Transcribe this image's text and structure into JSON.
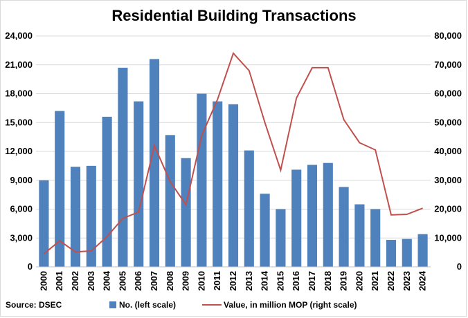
{
  "chart_data": {
    "type": "bar",
    "title": "Residential Building Transactions",
    "categories": [
      "2000",
      "2001",
      "2002",
      "2003",
      "2004",
      "2005",
      "2006",
      "2007",
      "2008",
      "2009",
      "2010",
      "2011",
      "2012",
      "2013",
      "2014",
      "2015",
      "2016",
      "2017",
      "2018",
      "2019",
      "2020",
      "2021",
      "2022",
      "2023",
      "2024"
    ],
    "series": [
      {
        "name": "No. (left scale)",
        "kind": "bar",
        "axis": "left",
        "color": "#4f81bd",
        "values": [
          9000,
          16200,
          10400,
          10500,
          15600,
          20700,
          17200,
          21600,
          13700,
          11300,
          18000,
          17200,
          16900,
          12100,
          7600,
          6000,
          10100,
          10600,
          10800,
          8300,
          6500,
          6000,
          2800,
          2900,
          3400
        ]
      },
      {
        "name": "Value, in million MOP (right scale)",
        "kind": "line",
        "axis": "right",
        "color": "#c0504d",
        "values": [
          4500,
          9000,
          5200,
          5500,
          10500,
          16800,
          19000,
          42000,
          29500,
          21500,
          45500,
          58000,
          74000,
          68000,
          50000,
          33500,
          58500,
          69000,
          69000,
          51000,
          43000,
          40500,
          18000,
          18200,
          20300
        ]
      }
    ],
    "y_left": {
      "min": 0,
      "max": 24000,
      "ticks": [
        "0",
        "3,000",
        "6,000",
        "9,000",
        "12,000",
        "15,000",
        "18,000",
        "21,000",
        "24,000"
      ]
    },
    "y_right": {
      "min": 0,
      "max": 80000,
      "ticks": [
        "0",
        "10,000",
        "20,000",
        "30,000",
        "40,000",
        "50,000",
        "60,000",
        "70,000",
        "80,000"
      ]
    },
    "grid": true,
    "legend": "bottom",
    "source": "Source: DSEC"
  }
}
